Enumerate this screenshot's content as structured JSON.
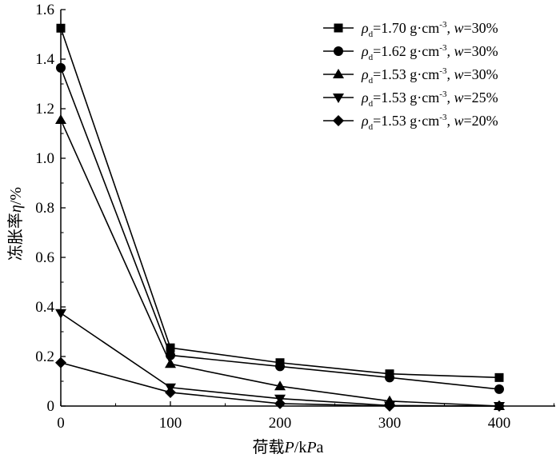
{
  "chart_data": {
    "type": "line",
    "xlabel": "荷载P/kPa",
    "ylabel": "冻胀率η/%",
    "x": [
      0,
      100,
      200,
      300,
      400
    ],
    "x_ticks": [
      "0",
      "100",
      "200",
      "300",
      "400"
    ],
    "xlim": [
      0,
      450
    ],
    "ylim": [
      0,
      1.6
    ],
    "y_ticks": [
      "0",
      "0.2",
      "0.4",
      "0.6",
      "0.8",
      "1.0",
      "1.2",
      "1.4",
      "1.6"
    ],
    "grid": false,
    "legend_position": "top-right",
    "series": [
      {
        "name": "ρd=1.70 g·cm-3, w=30%",
        "rho": "1.70",
        "w": "30%",
        "marker": "square",
        "values": [
          1.525,
          0.235,
          0.175,
          0.13,
          0.115
        ]
      },
      {
        "name": "ρd=1.62 g·cm-3, w=30%",
        "rho": "1.62",
        "w": "30%",
        "marker": "circle",
        "values": [
          1.365,
          0.205,
          0.16,
          0.115,
          0.068
        ]
      },
      {
        "name": "ρd=1.53 g·cm-3, w=30%",
        "rho": "1.53",
        "w": "30%",
        "marker": "triangle-up",
        "values": [
          1.155,
          0.17,
          0.08,
          0.02,
          0.0
        ]
      },
      {
        "name": "ρd=1.53 g·cm-3, w=25%",
        "rho": "1.53",
        "w": "25%",
        "marker": "triangle-down",
        "values": [
          0.375,
          0.075,
          0.03,
          0.002,
          0.0
        ]
      },
      {
        "name": "ρd=1.53 g·cm-3, w=20%",
        "rho": "1.53",
        "w": "20%",
        "marker": "diamond",
        "values": [
          0.175,
          0.055,
          0.01,
          0.0,
          0.0
        ]
      }
    ],
    "colors": {
      "line": "#000000",
      "marker": "#000000",
      "background": "#ffffff"
    }
  }
}
